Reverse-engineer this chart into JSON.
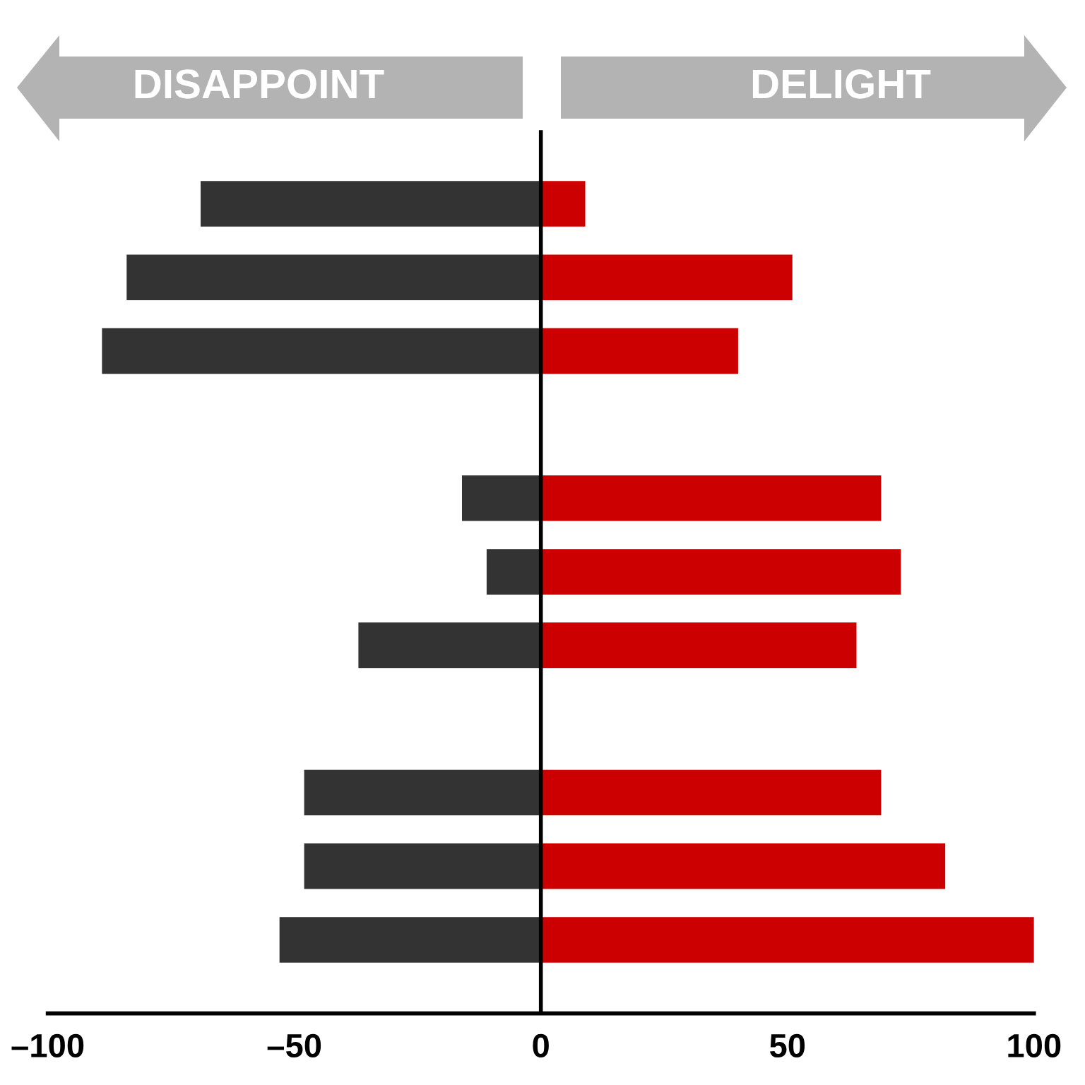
{
  "chart_data": {
    "type": "bar",
    "orientation": "horizontal",
    "stacked": true,
    "categories": [
      null,
      null,
      null,
      null,
      null,
      null,
      null,
      null,
      null,
      null,
      null
    ],
    "series": [
      {
        "color": "#333333",
        "values": [
          -69,
          -84,
          -89,
          null,
          -16,
          -11,
          -37,
          null,
          -48,
          -48,
          -53
        ]
      },
      {
        "color": "#cc0000",
        "values": [
          9,
          51,
          40,
          null,
          69,
          73,
          64,
          null,
          69,
          82,
          100
        ]
      }
    ],
    "xlim": [
      -100,
      100
    ],
    "xticks": [
      {
        "value": -100,
        "label": "–100"
      },
      {
        "value": -50,
        "label": "–50"
      },
      0,
      50,
      100
    ],
    "ref_lines": [
      {
        "axis": "x",
        "value": 0,
        "color": "#000000"
      }
    ],
    "annotations": [
      "DISAPPOINT",
      "DELIGHT"
    ],
    "grid": false,
    "legend": false
  }
}
